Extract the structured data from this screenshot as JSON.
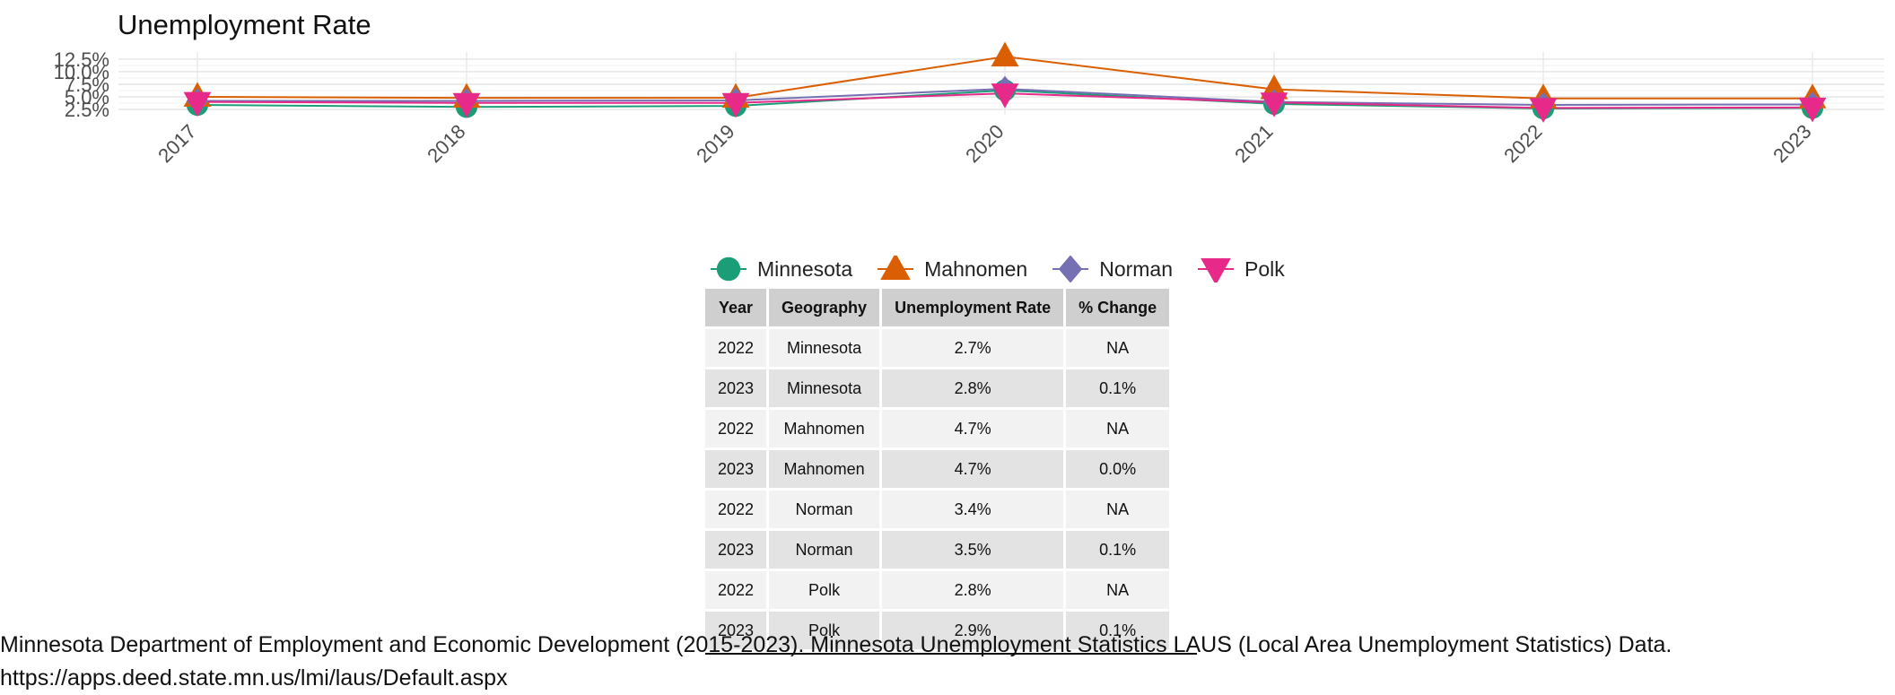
{
  "chart_data": {
    "type": "line",
    "title": "Unemployment Rate",
    "xlabel": "",
    "ylabel": "",
    "x": [
      "2017",
      "2018",
      "2019",
      "2020",
      "2021",
      "2022",
      "2023"
    ],
    "y_ticks": [
      "2.5%",
      "5.0%",
      "7.5%",
      "10.0%",
      "12.5%"
    ],
    "y_tick_values": [
      2.5,
      5.0,
      7.5,
      10.0,
      12.5
    ],
    "ylim": [
      1.8,
      13.2
    ],
    "grid": true,
    "legend_position": "bottom",
    "series": [
      {
        "name": "Minnesota",
        "values": [
          3.4,
          3.0,
          3.2,
          6.3,
          3.6,
          2.7,
          2.8
        ],
        "color": "#1b9e77",
        "marker": "circle"
      },
      {
        "name": "Mahnomen",
        "values": [
          5.0,
          4.8,
          4.8,
          13.0,
          6.5,
          4.7,
          4.7
        ],
        "color": "#d95f02",
        "marker": "triangle-up"
      },
      {
        "name": "Norman",
        "values": [
          4.2,
          4.2,
          4.3,
          6.6,
          4.0,
          3.4,
          3.5
        ],
        "color": "#7570b3",
        "marker": "diamond"
      },
      {
        "name": "Polk",
        "values": [
          4.0,
          3.8,
          3.8,
          5.7,
          3.9,
          2.8,
          2.9
        ],
        "color": "#e7298a",
        "marker": "triangle-down"
      }
    ]
  },
  "table": {
    "headers": [
      "Year",
      "Geography",
      "Unemployment Rate",
      "% Change"
    ],
    "rows": [
      [
        "2022",
        "Minnesota",
        "2.7%",
        "NA"
      ],
      [
        "2023",
        "Minnesota",
        "2.8%",
        "0.1%"
      ],
      [
        "2022",
        "Mahnomen",
        "4.7%",
        "NA"
      ],
      [
        "2023",
        "Mahnomen",
        "4.7%",
        "0.0%"
      ],
      [
        "2022",
        "Norman",
        "3.4%",
        "NA"
      ],
      [
        "2023",
        "Norman",
        "3.5%",
        "0.1%"
      ],
      [
        "2022",
        "Polk",
        "2.8%",
        "NA"
      ],
      [
        "2023",
        "Polk",
        "2.9%",
        "0.1%"
      ]
    ]
  },
  "caption": {
    "line1": "Minnesota Department of Employment and Economic Development (2015-2023). Minnesota Unemployment Statistics LAUS (Local Area Unemployment Statistics) Data.",
    "line2": "https://apps.deed.state.mn.us/lmi/laus/Default.aspx"
  }
}
